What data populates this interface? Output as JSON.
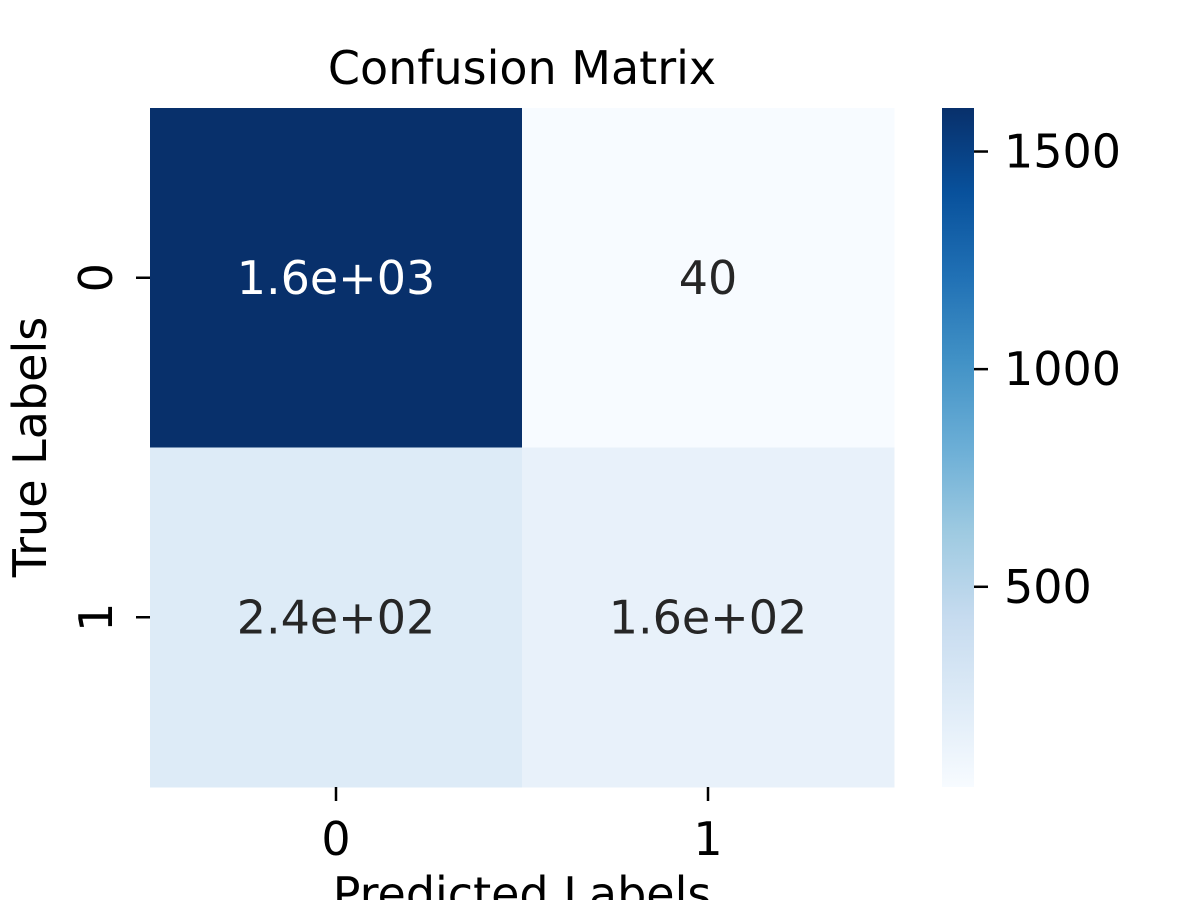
{
  "chart_data": {
    "type": "heatmap",
    "title": "Confusion Matrix",
    "xlabel": "Predicted Labels",
    "ylabel": "True Labels",
    "x_categories": [
      "0",
      "1"
    ],
    "y_categories": [
      "0",
      "1"
    ],
    "values": [
      [
        1600,
        40
      ],
      [
        240,
        160
      ]
    ],
    "annotations": [
      [
        "1.6e+03",
        "40"
      ],
      [
        "2.4e+02",
        "1.6e+02"
      ]
    ],
    "colormap": "Blues",
    "colormap_stops": [
      "#f7fbff",
      "#deebf7",
      "#c6dbef",
      "#9ecae1",
      "#6baed6",
      "#4292c6",
      "#2171b5",
      "#08519c",
      "#08306b"
    ],
    "color_range": [
      40,
      1600
    ],
    "colorbar_ticks": [
      500,
      1000,
      1500
    ],
    "colorbar_tick_labels": [
      "500",
      "1000",
      "1500"
    ]
  }
}
